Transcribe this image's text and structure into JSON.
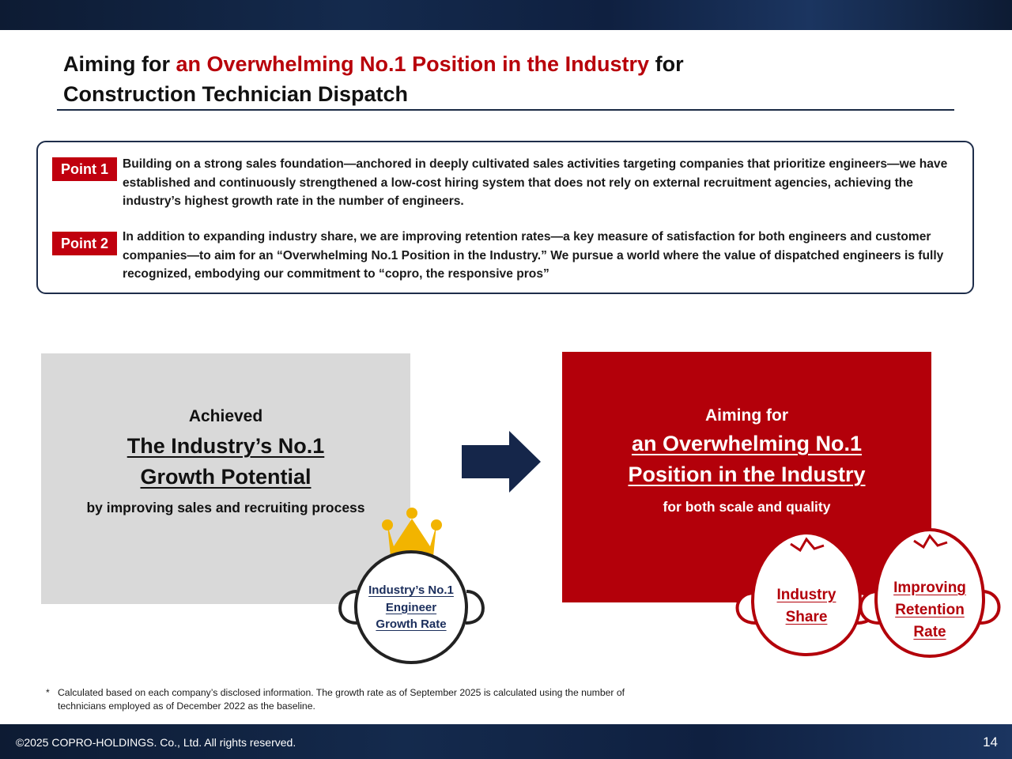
{
  "header": {
    "title_part1": "Aiming for ",
    "title_highlight": "an Overwhelming No.1 Position in the Industry",
    "title_part2": " for",
    "title_line2": "Construction Technician Dispatch"
  },
  "points": [
    {
      "badge": "Point 1",
      "text": "Building on a strong sales foundation—anchored in deeply cultivated sales activities targeting companies that prioritize engineers—we have established and continuously strengthened a low-cost hiring system that does not rely on external recruitment agencies, achieving the industry’s highest growth rate in the number of engineers."
    },
    {
      "badge": "Point 2",
      "text": "In addition to expanding industry share, we are improving retention rates—a key measure of satisfaction for both engineers and customer companies—to aim for an “Overwhelming No.1 Position in the Industry.”  We pursue a world where the value of dispatched engineers is fully recognized, embodying our commitment to “copro, the responsive pros”"
    }
  ],
  "left_panel": {
    "line1": "Achieved",
    "line2": "The  Industry’s No.1",
    "line3": "Growth Potential",
    "line4": "by improving sales and recruiting process",
    "figure": {
      "line1": "Industry’s No.1",
      "line2": "Engineer",
      "line3": "Growth Rate"
    }
  },
  "right_panel": {
    "line1": "Aiming for",
    "line2": "an Overwhelming No.1",
    "line3": "Position in the Industry",
    "line4": "for both scale and quality",
    "figure_left": {
      "line1": "Industry",
      "line2": "Share"
    },
    "figure_right": {
      "line1": "Improving",
      "line2": "Retention",
      "line3": "Rate"
    }
  },
  "colors": {
    "accent_red": "#b3000a",
    "navy": "#1a2a44",
    "gold": "#f2b400"
  },
  "icons": [
    "right-arrow-icon",
    "crown-icon",
    "face-figure-icon"
  ],
  "footnote": {
    "marker": "*",
    "text": "Calculated based on each company’s disclosed information. The growth rate as of September 2025 is calculated using the number of technicians employed as of December 2022 as the baseline."
  },
  "footer": {
    "copyright": "©2025 COPRO-HOLDINGS. Co., Ltd. All rights reserved.",
    "page_number": "14"
  }
}
